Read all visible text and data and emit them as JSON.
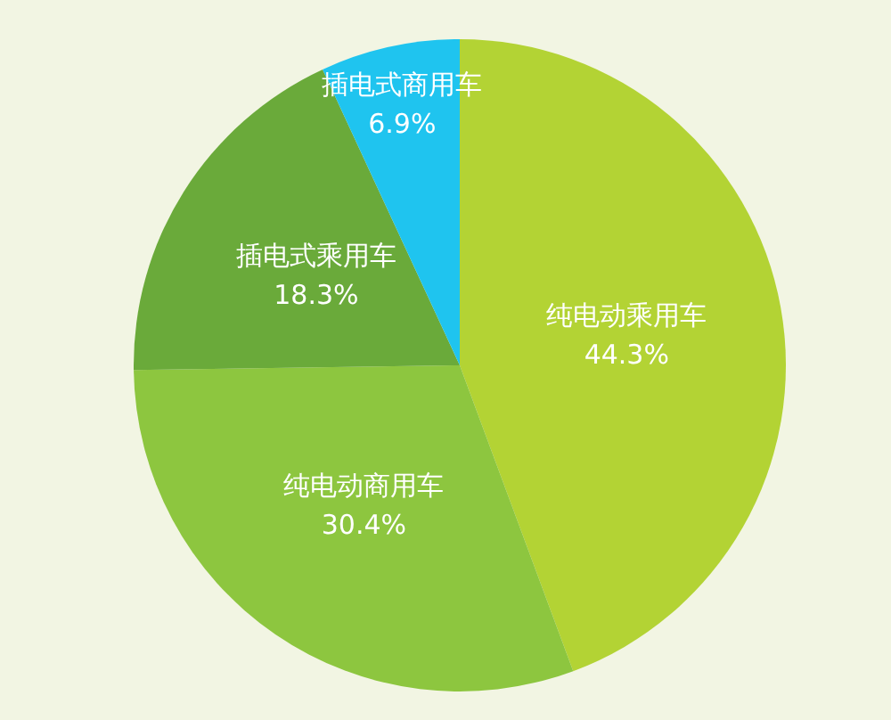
{
  "chart_data": {
    "type": "pie",
    "categories": [
      "纯电动乘用车",
      "纯电动商用车",
      "插电式乘用车",
      "插电式商用车"
    ],
    "values": [
      44.3,
      30.4,
      18.3,
      6.9
    ],
    "value_labels": [
      "44.3%",
      "30.4%",
      "18.3%",
      "6.9%"
    ],
    "colors": [
      "#b3d334",
      "#8dc63f",
      "#6aaa3a",
      "#1fc4ef"
    ],
    "legend": false
  }
}
